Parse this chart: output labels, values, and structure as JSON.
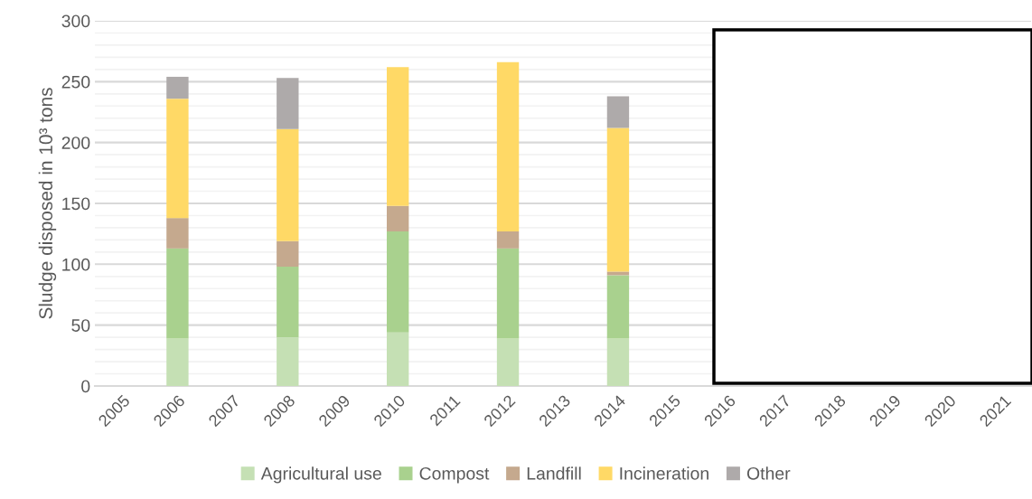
{
  "chart_data": {
    "type": "bar",
    "stacked": true,
    "ylabel": "Sludge disposed in 10³ tons",
    "categories": [
      "2005",
      "2006",
      "2007",
      "2008",
      "2009",
      "2010",
      "2011",
      "2012",
      "2013",
      "2014",
      "2015",
      "2016",
      "2017",
      "2018",
      "2019",
      "2020",
      "2021"
    ],
    "series": [
      {
        "name": "Agricultural use",
        "color": "#c5e0b4",
        "values": [
          null,
          39,
          null,
          40,
          null,
          44,
          null,
          39,
          null,
          39,
          null,
          null,
          null,
          null,
          null,
          null,
          null
        ]
      },
      {
        "name": "Compost",
        "color": "#a9d18e",
        "values": [
          null,
          74,
          null,
          58,
          null,
          83,
          null,
          74,
          null,
          52,
          null,
          null,
          null,
          null,
          null,
          null,
          null
        ]
      },
      {
        "name": "Landfill",
        "color": "#c5a98e",
        "values": [
          null,
          25,
          null,
          21,
          null,
          21,
          null,
          14,
          null,
          3,
          null,
          null,
          null,
          null,
          null,
          null,
          null
        ]
      },
      {
        "name": "Incineration",
        "color": "#ffd966",
        "values": [
          null,
          98,
          null,
          92,
          null,
          114,
          null,
          139,
          null,
          118,
          null,
          null,
          null,
          null,
          null,
          null,
          null
        ]
      },
      {
        "name": "Other",
        "color": "#aeaaaa",
        "values": [
          null,
          18,
          null,
          42,
          null,
          null,
          null,
          null,
          null,
          26,
          null,
          null,
          null,
          null,
          null,
          null,
          null
        ]
      }
    ],
    "ylim": [
      0,
      300
    ],
    "yticks": [
      0,
      {
        "value": 10,
        "label": null
      },
      {
        "value": 20,
        "label": null
      },
      {
        "value": 30,
        "label": null
      },
      {
        "value": 40,
        "label": null
      },
      50,
      {
        "value": 60,
        "label": null
      },
      {
        "value": 70,
        "label": null
      },
      {
        "value": 80,
        "label": null
      },
      {
        "value": 90,
        "label": null
      },
      100,
      {
        "value": 110,
        "label": null
      },
      {
        "value": 120,
        "label": null
      },
      {
        "value": 130,
        "label": null
      },
      {
        "value": 140,
        "label": null
      },
      150,
      {
        "value": 160,
        "label": null
      },
      {
        "value": 170,
        "label": null
      },
      {
        "value": 180,
        "label": null
      },
      {
        "value": 190,
        "label": null
      },
      200,
      {
        "value": 210,
        "label": null
      },
      {
        "value": 220,
        "label": null
      },
      {
        "value": 230,
        "label": null
      },
      {
        "value": 240,
        "label": null
      },
      250,
      {
        "value": 260,
        "label": null
      },
      {
        "value": 270,
        "label": null
      },
      {
        "value": 280,
        "label": null
      },
      {
        "value": 290,
        "label": null
      },
      300
    ],
    "grid": "y",
    "legend": "bottom"
  }
}
